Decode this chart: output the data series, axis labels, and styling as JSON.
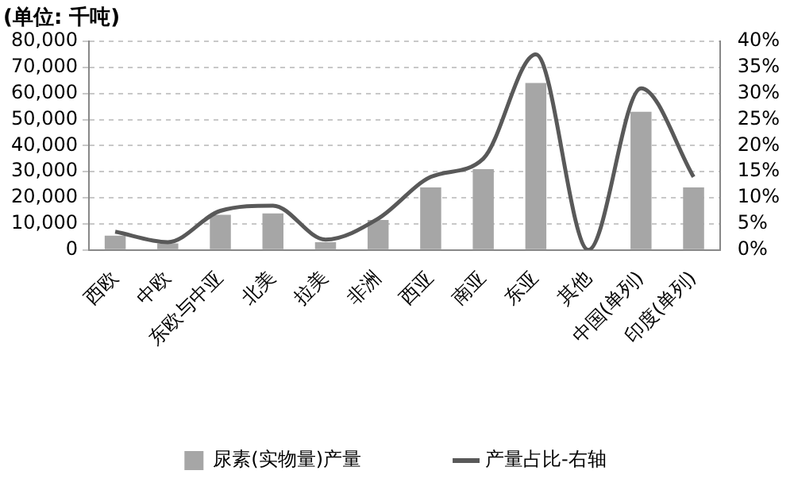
{
  "chart_data": {
    "type": "bar",
    "ylabel": "(单位: 千吨)",
    "categories": [
      "西欧",
      "中欧",
      "东欧与中亚",
      "北美",
      "拉美",
      "非洲",
      "西亚",
      "南亚",
      "东亚",
      "其他",
      "中国(单列)",
      "印度(单列)"
    ],
    "series": [
      {
        "name": "尿素(实物量)产量",
        "color": "#a6a6a6",
        "values": [
          5500,
          2500,
          13500,
          14000,
          3000,
          11500,
          24000,
          31000,
          64000,
          0,
          53000,
          24000
        ]
      },
      {
        "name": "产量占比-右轴",
        "type": "line",
        "axis": "y2",
        "color": "#595959",
        "values": [
          3.5,
          1.5,
          7.5,
          8.5,
          2,
          6,
          14,
          17.5,
          37.5,
          0,
          31,
          14
        ]
      }
    ],
    "ylim": [
      0,
      80000
    ],
    "yticks": [
      {
        "value": 0,
        "label": "0"
      },
      {
        "value": 10000,
        "label": "10,000"
      },
      {
        "value": 20000,
        "label": "20,000"
      },
      {
        "value": 30000,
        "label": "30,000"
      },
      {
        "value": 40000,
        "label": "40,000"
      },
      {
        "value": 50000,
        "label": "50,000"
      },
      {
        "value": 60000,
        "label": "60,000"
      },
      {
        "value": 70000,
        "label": "70,000"
      },
      {
        "value": 80000,
        "label": "80,000"
      }
    ],
    "y2lim": [
      0,
      40
    ],
    "y2ticks": [
      {
        "value": 0,
        "label": "0%"
      },
      {
        "value": 5,
        "label": "5%"
      },
      {
        "value": 10,
        "label": "10%"
      },
      {
        "value": 15,
        "label": "15%"
      },
      {
        "value": 20,
        "label": "20%"
      },
      {
        "value": 25,
        "label": "25%"
      },
      {
        "value": 30,
        "label": "30%"
      },
      {
        "value": 35,
        "label": "35%"
      },
      {
        "value": 40,
        "label": "40%"
      }
    ],
    "grid": "y",
    "legend": "bottom",
    "marker": "none"
  }
}
